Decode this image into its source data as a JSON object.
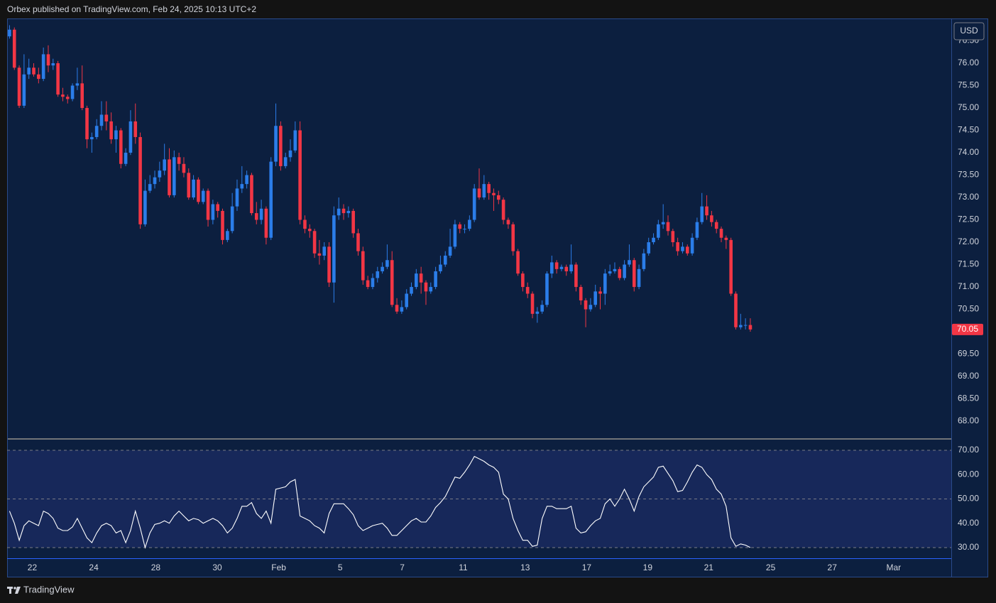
{
  "header": {
    "text": "Orbex published on TradingView.com, Feb 24, 2025 10:13 UTC+2"
  },
  "footer": {
    "brand": "TradingView"
  },
  "chart_data": [
    {
      "type": "candlestick",
      "currency": "USD",
      "up_color": "#2b7de9",
      "down_color": "#f23645",
      "xlim": [
        -0.5,
        194.5
      ],
      "xticks": [
        {
          "value": 4.7,
          "label": "22"
        },
        {
          "value": 17.4,
          "label": "24"
        },
        {
          "value": 30.2,
          "label": "28"
        },
        {
          "value": 42.9,
          "label": "30"
        },
        {
          "value": 55.6,
          "label": "Feb"
        },
        {
          "value": 68.3,
          "label": "5"
        },
        {
          "value": 81.1,
          "label": "7"
        },
        {
          "value": 93.7,
          "label": "11"
        },
        {
          "value": 106.5,
          "label": "13"
        },
        {
          "value": 119.2,
          "label": "17"
        },
        {
          "value": 131.8,
          "label": "19"
        },
        {
          "value": 144.4,
          "label": "21"
        },
        {
          "value": 157.2,
          "label": "25"
        },
        {
          "value": 169.9,
          "label": "27"
        },
        {
          "value": 182.6,
          "label": "Mar"
        }
      ],
      "ylim": [
        67.62,
        77.0
      ],
      "yticks": [
        {
          "value": 68,
          "label": "68.00"
        },
        {
          "value": 68.5,
          "label": "68.50"
        },
        {
          "value": 69,
          "label": "69.00"
        },
        {
          "value": 69.5,
          "label": "69.50"
        },
        {
          "value": 70,
          "label": "70.00"
        },
        {
          "value": 70.5,
          "label": "70.50"
        },
        {
          "value": 71,
          "label": "71.00"
        },
        {
          "value": 71.5,
          "label": "71.50"
        },
        {
          "value": 72,
          "label": "72.00"
        },
        {
          "value": 72.5,
          "label": "72.50"
        },
        {
          "value": 73,
          "label": "73.00"
        },
        {
          "value": 73.5,
          "label": "73.50"
        },
        {
          "value": 74,
          "label": "74.00"
        },
        {
          "value": 74.5,
          "label": "74.50"
        },
        {
          "value": 75,
          "label": "75.00"
        },
        {
          "value": 75.5,
          "label": "75.50"
        },
        {
          "value": 76,
          "label": "76.00"
        },
        {
          "value": 76.5,
          "label": "76.50"
        }
      ],
      "open": [
        76.6,
        76.75,
        75.9,
        75.05,
        75.75,
        75.9,
        75.75,
        75.65,
        76.2,
        75.95,
        76.0,
        75.3,
        75.25,
        75.2,
        75.5,
        75.55,
        75.0,
        74.3,
        74.35,
        74.6,
        74.85,
        74.7,
        74.3,
        74.5,
        73.75,
        74.0,
        74.7,
        74.35,
        72.4,
        73.15,
        73.3,
        73.45,
        73.6,
        73.85,
        73.05,
        73.9,
        73.75,
        73.55,
        73.0,
        73.4,
        72.9,
        73.15,
        72.5,
        72.85,
        72.7,
        72.05,
        72.25,
        72.8,
        73.2,
        73.3,
        73.5,
        72.65,
        72.5,
        72.75,
        72.1,
        73.8,
        74.6,
        73.7,
        73.9,
        74.05,
        74.5,
        72.5,
        72.3,
        72.25,
        71.75,
        71.7,
        71.9,
        71.1,
        72.6,
        72.75,
        72.65,
        72.7,
        72.2,
        71.8,
        71.15,
        71.0,
        71.2,
        71.35,
        71.45,
        71.6,
        70.6,
        70.45,
        70.55,
        70.85,
        71.0,
        71.3,
        71.1,
        70.9,
        71.0,
        71.35,
        71.5,
        71.7,
        71.9,
        72.4,
        72.3,
        72.3,
        72.5,
        73.2,
        73.0,
        73.3,
        73.1,
        73.05,
        72.95,
        72.5,
        72.4,
        71.8,
        71.3,
        71.0,
        70.85,
        70.4,
        70.45,
        70.6,
        71.3,
        71.55,
        71.4,
        71.45,
        71.35,
        71.5,
        71.0,
        70.7,
        70.5,
        70.6,
        70.9,
        70.85,
        71.3,
        71.35,
        71.4,
        71.2,
        71.5,
        71.6,
        71.0,
        71.4,
        71.75,
        72.0,
        72.1,
        72.4,
        72.45,
        72.25,
        72.0,
        71.8,
        71.9,
        71.75,
        72.1,
        72.45,
        72.8,
        72.6,
        72.45,
        72.3,
        72.1,
        72.05,
        70.85,
        70.1,
        70.15,
        70.15
      ],
      "high": [
        76.85,
        76.8,
        75.95,
        76.2,
        76.1,
        76.0,
        75.9,
        76.35,
        76.4,
        76.1,
        76.05,
        75.45,
        75.3,
        75.55,
        75.9,
        75.95,
        75.05,
        74.45,
        74.75,
        75.15,
        75.15,
        74.9,
        74.6,
        74.55,
        74.1,
        74.95,
        75.1,
        74.45,
        73.4,
        73.5,
        73.6,
        73.8,
        74.2,
        74.1,
        74.05,
        74.0,
        73.9,
        73.65,
        73.5,
        73.45,
        73.2,
        73.2,
        72.95,
        72.9,
        72.75,
        72.3,
        73.1,
        73.4,
        73.7,
        73.6,
        73.55,
        72.9,
        72.95,
        72.8,
        73.9,
        75.1,
        74.7,
        74.0,
        74.3,
        74.7,
        74.7,
        72.6,
        72.4,
        72.3,
        72.05,
        72.0,
        72.0,
        72.8,
        73.0,
        72.85,
        72.8,
        72.75,
        72.3,
        71.9,
        71.25,
        71.3,
        71.45,
        71.55,
        71.95,
        71.8,
        70.75,
        70.7,
        70.95,
        71.1,
        71.4,
        71.45,
        71.15,
        71.1,
        71.45,
        71.7,
        71.8,
        72.3,
        72.5,
        72.45,
        72.4,
        72.6,
        73.3,
        73.65,
        73.5,
        73.35,
        73.2,
        73.15,
        73.0,
        72.55,
        72.45,
        71.85,
        71.35,
        71.1,
        70.9,
        70.55,
        70.7,
        71.35,
        71.7,
        71.6,
        71.5,
        71.5,
        71.95,
        71.55,
        71.05,
        70.75,
        70.75,
        71.05,
        71.0,
        71.4,
        71.5,
        71.55,
        71.45,
        71.6,
        71.95,
        71.65,
        71.5,
        71.85,
        72.1,
        72.2,
        72.5,
        72.85,
        72.6,
        72.3,
        72.1,
        72.0,
        71.95,
        72.2,
        72.55,
        73.1,
        73.05,
        72.7,
        72.5,
        72.35,
        72.15,
        72.1,
        70.9,
        70.4,
        70.3,
        70.3
      ],
      "low": [
        76.55,
        75.85,
        75.0,
        75.0,
        75.65,
        75.7,
        75.55,
        75.6,
        75.8,
        75.85,
        75.25,
        75.15,
        75.1,
        75.15,
        75.4,
        74.95,
        74.1,
        74.0,
        74.3,
        74.5,
        74.5,
        74.2,
        74.0,
        73.65,
        73.7,
        73.95,
        74.2,
        72.3,
        72.35,
        73.1,
        73.2,
        73.35,
        73.5,
        73.0,
        73.0,
        73.6,
        73.45,
        72.95,
        72.95,
        72.85,
        72.85,
        72.35,
        72.4,
        72.55,
        71.95,
        72.0,
        72.2,
        72.7,
        73.1,
        73.2,
        72.6,
        72.4,
        72.4,
        71.95,
        72.05,
        73.7,
        73.6,
        73.65,
        73.8,
        74.0,
        72.4,
        72.2,
        72.1,
        71.65,
        71.5,
        71.6,
        71.0,
        70.65,
        72.5,
        72.5,
        72.55,
        72.1,
        71.7,
        71.05,
        70.95,
        70.95,
        71.1,
        71.3,
        71.4,
        70.55,
        70.4,
        70.4,
        70.5,
        70.8,
        70.95,
        70.85,
        70.6,
        70.85,
        70.95,
        71.3,
        71.45,
        71.65,
        71.85,
        72.2,
        72.2,
        72.25,
        72.45,
        72.95,
        72.95,
        72.95,
        72.7,
        72.85,
        72.4,
        72.3,
        71.7,
        71.25,
        70.9,
        70.75,
        70.3,
        70.2,
        70.4,
        70.55,
        71.2,
        71.3,
        71.35,
        71.25,
        71.3,
        70.9,
        70.6,
        70.1,
        70.45,
        70.55,
        70.5,
        70.6,
        71.25,
        71.3,
        71.15,
        71.15,
        71.45,
        70.9,
        70.95,
        71.35,
        71.7,
        71.95,
        72.05,
        72.3,
        72.15,
        71.9,
        71.7,
        71.75,
        71.7,
        71.7,
        72.05,
        72.4,
        72.5,
        72.35,
        72.2,
        72.0,
        71.85,
        70.8,
        70.05,
        70.05,
        70.05,
        70.0
      ],
      "close": [
        76.75,
        75.9,
        75.05,
        75.75,
        75.9,
        75.75,
        75.65,
        76.2,
        75.95,
        76.0,
        75.3,
        75.25,
        75.2,
        75.5,
        75.55,
        75.0,
        74.3,
        74.35,
        74.6,
        74.85,
        74.7,
        74.3,
        74.5,
        73.75,
        74.0,
        74.7,
        74.35,
        72.4,
        73.15,
        73.3,
        73.45,
        73.6,
        73.85,
        73.05,
        73.9,
        73.75,
        73.55,
        73.0,
        73.4,
        72.9,
        73.15,
        72.5,
        72.85,
        72.7,
        72.05,
        72.25,
        72.8,
        73.2,
        73.3,
        73.5,
        72.65,
        72.5,
        72.75,
        72.1,
        73.8,
        74.6,
        73.7,
        73.9,
        74.05,
        74.5,
        72.5,
        72.3,
        72.25,
        71.75,
        71.7,
        71.9,
        71.1,
        72.6,
        72.75,
        72.65,
        72.7,
        72.2,
        71.8,
        71.15,
        71.0,
        71.2,
        71.35,
        71.45,
        71.6,
        70.6,
        70.45,
        70.55,
        70.85,
        71.0,
        71.3,
        71.1,
        70.9,
        71.0,
        71.35,
        71.5,
        71.7,
        71.9,
        72.4,
        72.3,
        72.3,
        72.5,
        73.2,
        73.0,
        73.3,
        73.1,
        73.05,
        72.95,
        72.5,
        72.4,
        71.8,
        71.3,
        71.0,
        70.85,
        70.4,
        70.45,
        70.6,
        71.3,
        71.55,
        71.4,
        71.45,
        71.35,
        71.5,
        71.0,
        70.7,
        70.5,
        70.6,
        70.9,
        70.85,
        71.3,
        71.35,
        71.4,
        71.2,
        71.5,
        71.6,
        71.0,
        71.4,
        71.75,
        72.0,
        72.1,
        72.4,
        72.45,
        72.25,
        72.0,
        71.8,
        71.9,
        71.75,
        72.1,
        72.45,
        72.8,
        72.6,
        72.45,
        72.3,
        72.1,
        72.05,
        70.85,
        70.1,
        70.15,
        70.15,
        70.05
      ]
    },
    {
      "type": "line",
      "color": "#ffffff",
      "band_color": "#17285a",
      "ylim": [
        25.6,
        74.4
      ],
      "yticks": [
        {
          "value": 30,
          "label": "30.00"
        },
        {
          "value": 40,
          "label": "40.00"
        },
        {
          "value": 50,
          "label": "50.00"
        },
        {
          "value": 60,
          "label": "60.00"
        },
        {
          "value": 70,
          "label": "70.00"
        }
      ],
      "values": [
        45,
        40,
        33,
        39,
        41,
        40,
        39,
        45,
        44,
        42,
        38,
        37,
        37,
        38.5,
        42,
        38,
        34,
        32,
        36,
        39,
        40,
        39,
        36,
        37,
        32,
        37,
        45,
        38,
        30,
        36,
        39.5,
        40,
        41,
        40,
        43,
        45,
        43,
        41,
        42,
        41.5,
        40,
        41,
        42,
        41,
        39,
        36,
        38,
        42,
        47,
        47,
        48.5,
        44,
        42,
        45,
        40,
        54,
        54.5,
        55,
        57,
        58,
        43,
        42,
        41,
        39,
        38,
        36,
        44,
        48,
        48,
        48,
        46,
        43.5,
        39,
        37,
        38,
        39,
        39.5,
        40,
        38,
        35,
        35,
        37,
        39,
        41,
        42,
        40.5,
        40.5,
        43,
        46.5,
        48.5,
        51,
        55,
        59,
        58.5,
        61,
        64,
        67.5,
        66.5,
        65.5,
        64,
        63,
        61,
        52,
        50,
        42,
        37,
        33,
        33,
        30.5,
        31,
        42,
        47,
        47,
        46,
        46,
        46,
        47,
        38,
        36,
        36.5,
        39,
        41,
        42,
        48,
        50,
        47,
        50,
        54,
        50,
        45,
        51,
        55,
        57,
        59,
        63,
        63.5,
        60.5,
        57.5,
        53,
        53.5,
        57,
        61,
        64,
        63,
        60,
        58,
        54,
        52,
        47,
        34,
        30.5,
        31.5,
        31,
        30
      ]
    }
  ]
}
